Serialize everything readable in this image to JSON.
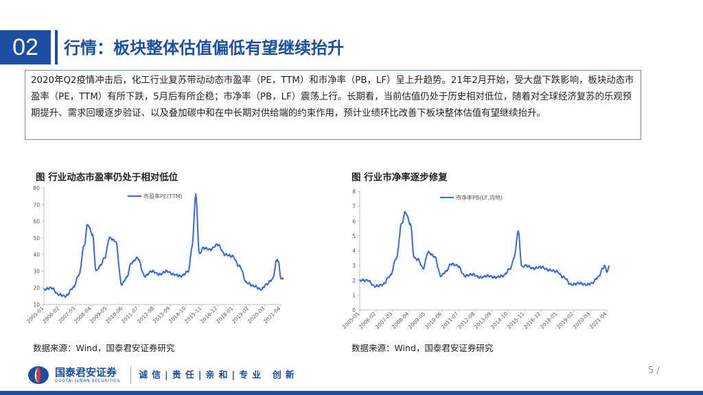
{
  "header": {
    "section_number": "02",
    "title": "行情：板块整体估值偏低有望继续抬升"
  },
  "summary": {
    "text": "2020年Q2疫情冲击后，化工行业复苏带动动态市盈率（PE，TTM）和市净率（PB，LF）呈上升趋势。21年2月开始，受大盘下跌影响，板块动态市盈率（PE，TTM）有所下跌，5月后有所企稳；市净率（PB，LF）震荡上行。长期看，当前估值仍处于历史相对低位，随着对全球经济复苏的乐观预期提升、需求回暖逐步验证、以及叠加碳中和在中长期对供给端的约束作用，预计业绩环比改善下板块整体估值有望继续抬升。"
  },
  "figures": [
    {
      "title": "图 行业动态市盈率仍处于相对低位",
      "source": "数据来源：Wind，国泰君安证券研究"
    },
    {
      "title": "图 行业市净率逐步修复",
      "source": "数据来源：Wind，国泰君安证券研究"
    }
  ],
  "chart_data": [
    {
      "type": "line",
      "title": "",
      "xlabel": "",
      "ylabel": "",
      "ylim": [
        10,
        80
      ],
      "yticks": [
        10,
        20,
        30,
        40,
        50,
        60,
        70,
        80
      ],
      "xticks": [
        "2005-01",
        "2006-02",
        "2007-03",
        "2008-04",
        "2009-05",
        "2010-06",
        "2011-07",
        "2012-08",
        "2013-09",
        "2014-10",
        "2015-11",
        "2016-12",
        "2018-01",
        "2019-02",
        "2020-03",
        "2021-04"
      ],
      "legend_position": "top-center",
      "grid": false,
      "series": [
        {
          "name": "市盈率PE(TTM)",
          "color": "#3a66e0",
          "x": [
            "2005-01",
            "2005-07",
            "2006-01",
            "2006-07",
            "2007-01",
            "2007-06",
            "2007-10",
            "2008-01",
            "2008-05",
            "2008-08",
            "2008-11",
            "2009-03",
            "2009-07",
            "2009-12",
            "2010-05",
            "2010-09",
            "2011-01",
            "2011-06",
            "2011-12",
            "2012-06",
            "2012-12",
            "2013-06",
            "2013-12",
            "2014-06",
            "2014-12",
            "2015-03",
            "2015-06",
            "2015-09",
            "2015-12",
            "2016-06",
            "2016-12",
            "2017-06",
            "2017-12",
            "2018-06",
            "2018-12",
            "2019-06",
            "2019-12",
            "2020-04",
            "2020-09",
            "2021-01",
            "2021-02",
            "2021-04",
            "2021-06"
          ],
          "values": [
            19,
            20,
            16,
            15,
            20,
            28,
            45,
            58,
            52,
            30,
            33,
            38,
            50,
            48,
            22,
            26,
            35,
            38,
            27,
            30,
            28,
            30,
            28,
            27,
            30,
            45,
            76,
            40,
            44,
            43,
            46,
            40,
            39,
            33,
            23,
            21,
            19,
            22,
            25,
            37,
            36,
            26,
            25
          ]
        }
      ]
    },
    {
      "type": "line",
      "title": "",
      "xlabel": "",
      "ylabel": "",
      "ylim": [
        0,
        8
      ],
      "yticks": [
        0,
        1,
        2,
        3,
        4,
        5,
        6,
        7,
        8
      ],
      "xticks": [
        "2005-01",
        "2006-02",
        "2007-03",
        "2008-04",
        "2009-05",
        "2010-06",
        "2011-07",
        "2012-08",
        "2013-09",
        "2014-10",
        "2015-11",
        "2016-12",
        "2018-01",
        "2019-02",
        "2020-03",
        "2021-04"
      ],
      "legend_position": "top-center",
      "grid": false,
      "series": [
        {
          "name": "市净率PB(LF,内地)",
          "color": "#3a66e0",
          "x": [
            "2005-01",
            "2005-07",
            "2006-01",
            "2006-07",
            "2007-01",
            "2007-06",
            "2007-10",
            "2008-01",
            "2008-05",
            "2008-08",
            "2008-11",
            "2009-03",
            "2009-07",
            "2009-12",
            "2010-05",
            "2010-09",
            "2011-01",
            "2011-06",
            "2011-12",
            "2012-06",
            "2012-12",
            "2013-06",
            "2013-12",
            "2014-06",
            "2014-12",
            "2015-03",
            "2015-06",
            "2015-09",
            "2015-12",
            "2016-06",
            "2016-12",
            "2017-06",
            "2017-12",
            "2018-06",
            "2018-12",
            "2019-06",
            "2019-12",
            "2020-04",
            "2020-09",
            "2021-01",
            "2021-02",
            "2021-04",
            "2021-06"
          ],
          "values": [
            2.0,
            2.0,
            1.6,
            1.7,
            2.3,
            3.5,
            5.8,
            6.6,
            5.8,
            3.5,
            3.4,
            2.8,
            3.9,
            3.6,
            2.3,
            2.6,
            3.1,
            3.0,
            2.3,
            2.4,
            2.2,
            2.3,
            2.2,
            2.3,
            2.8,
            3.6,
            5.3,
            2.9,
            3.0,
            2.8,
            2.9,
            2.7,
            2.6,
            2.2,
            1.7,
            1.8,
            1.7,
            1.8,
            2.2,
            2.8,
            3.0,
            2.6,
            2.9
          ]
        }
      ]
    }
  ],
  "footer": {
    "company_cn": "国泰君安证券",
    "company_en": "GUOTAI JUNAN SECURITIES",
    "slogan": "诚信|责任|亲和|专业 创新",
    "page": "5 /"
  },
  "colors": {
    "brand": "#1c4ea1",
    "line": "#3a66e0",
    "border": "#6f8fc9"
  }
}
